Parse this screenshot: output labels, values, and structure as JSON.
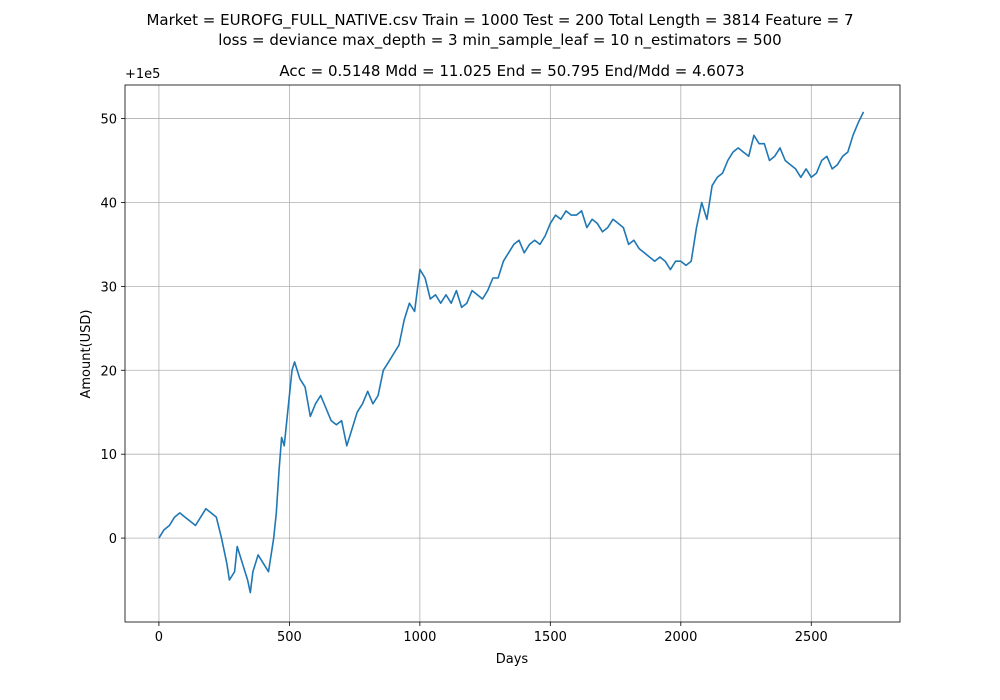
{
  "chart_data": {
    "type": "line",
    "suptitle_line1": "Market = EUROFG_FULL_NATIVE.csv  Train = 1000  Test = 200  Total Length = 3814  Feature = 7",
    "suptitle_line2": "loss = deviance  max_depth = 3  min_sample_leaf = 10  n_estimators = 500",
    "title": "Acc = 0.5148  Mdd = 11.025  End = 50.795  End/Mdd = 4.6073",
    "xlabel": "Days",
    "ylabel": "Amount(USD)",
    "offset_label": "+1e5",
    "xlim": [
      -130,
      2840
    ],
    "ylim": [
      -10,
      54
    ],
    "xticks": [
      0,
      500,
      1000,
      1500,
      2000,
      2500
    ],
    "yticks": [
      0,
      10,
      20,
      30,
      40,
      50
    ],
    "grid": true,
    "line_color": "#1f77b4",
    "series": [
      {
        "x": [
          0,
          20,
          40,
          60,
          80,
          100,
          120,
          140,
          160,
          180,
          200,
          220,
          240,
          260,
          270,
          290,
          300,
          320,
          340,
          350,
          360,
          380,
          400,
          420,
          440,
          450,
          460,
          470,
          480,
          500,
          510,
          520,
          540,
          560,
          580,
          600,
          620,
          640,
          660,
          680,
          700,
          720,
          740,
          760,
          780,
          800,
          820,
          840,
          860,
          880,
          900,
          920,
          940,
          960,
          980,
          1000,
          1020,
          1040,
          1060,
          1080,
          1100,
          1120,
          1140,
          1160,
          1180,
          1200,
          1220,
          1240,
          1260,
          1280,
          1300,
          1320,
          1340,
          1360,
          1380,
          1400,
          1420,
          1440,
          1460,
          1480,
          1500,
          1520,
          1540,
          1560,
          1580,
          1600,
          1620,
          1640,
          1660,
          1680,
          1700,
          1720,
          1740,
          1760,
          1780,
          1800,
          1820,
          1840,
          1860,
          1880,
          1900,
          1920,
          1940,
          1960,
          1980,
          2000,
          2020,
          2040,
          2060,
          2080,
          2100,
          2120,
          2140,
          2160,
          2180,
          2200,
          2220,
          2240,
          2260,
          2280,
          2300,
          2320,
          2340,
          2360,
          2380,
          2400,
          2420,
          2440,
          2460,
          2480,
          2500,
          2520,
          2540,
          2560,
          2580,
          2600,
          2620,
          2640,
          2660,
          2680,
          2700
        ],
        "y": [
          0,
          1,
          1.5,
          2.5,
          3,
          2.5,
          2,
          1.5,
          2.5,
          3.5,
          3,
          2.5,
          0,
          -3,
          -5,
          -4,
          -1,
          -3,
          -5,
          -6.5,
          -4,
          -2,
          -3,
          -4,
          0,
          3,
          8,
          12,
          11,
          17,
          20,
          21,
          19,
          18,
          14.5,
          16,
          17,
          15.5,
          14,
          13.5,
          14,
          11,
          13,
          15,
          16,
          17.5,
          16,
          17,
          20,
          21,
          22,
          23,
          26,
          28,
          27,
          32,
          31,
          28.5,
          29,
          28,
          29,
          28,
          29.5,
          27.5,
          28,
          29.5,
          29,
          28.5,
          29.5,
          31,
          31,
          33,
          34,
          35,
          35.5,
          34,
          35,
          35.5,
          35,
          36,
          37.5,
          38.5,
          38,
          39,
          38.5,
          38.5,
          39,
          37,
          38,
          37.5,
          36.5,
          37,
          38,
          37.5,
          37,
          35,
          35.5,
          34.5,
          34,
          33.5,
          33,
          33.5,
          33,
          32,
          33,
          33,
          32.5,
          33,
          37,
          40,
          38,
          42,
          43,
          43.5,
          45,
          46,
          46.5,
          46,
          45.5,
          48,
          47,
          47,
          45,
          45.5,
          46.5,
          45,
          44.5,
          44,
          43,
          44,
          43,
          43.5,
          45,
          45.5,
          44,
          44.5,
          45.5,
          46,
          48,
          49.5,
          50.8
        ]
      }
    ]
  }
}
